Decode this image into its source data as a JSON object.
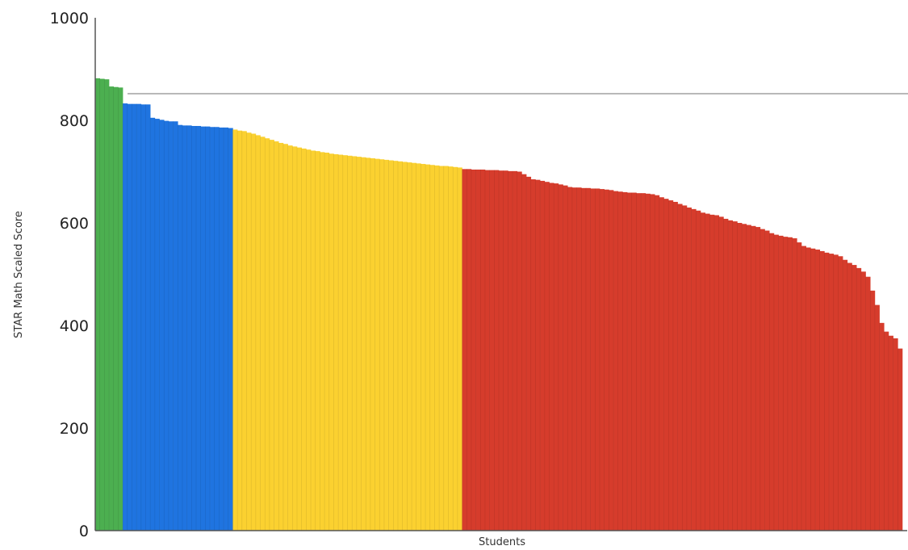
{
  "chart_data": {
    "type": "bar",
    "xlabel": "Students",
    "ylabel": "STAR Math Scaled Score",
    "ylim": [
      0,
      1000
    ],
    "yticks": [
      0,
      200,
      400,
      600,
      800,
      1000
    ],
    "reference_line": 852,
    "grid": false,
    "legend": "none",
    "groups": [
      {
        "color": "#4caf50",
        "values": [
          882,
          881,
          880,
          866,
          865,
          864
        ]
      },
      {
        "color": "#1f74e0",
        "values": [
          833,
          832,
          832,
          832,
          831,
          831,
          805,
          803,
          801,
          799,
          798,
          798,
          791,
          790,
          790,
          789,
          789,
          788,
          788,
          787,
          787,
          786,
          786,
          785
        ]
      },
      {
        "color": "#fbd130",
        "values": [
          782,
          780,
          779,
          776,
          774,
          771,
          768,
          765,
          762,
          759,
          756,
          754,
          751,
          749,
          747,
          745,
          743,
          741,
          740,
          738,
          737,
          735,
          734,
          733,
          732,
          731,
          730,
          729,
          728,
          727,
          726,
          725,
          724,
          723,
          722,
          721,
          720,
          719,
          718,
          717,
          716,
          715,
          714,
          713,
          712,
          711,
          711,
          710,
          709,
          708
        ]
      },
      {
        "color": "#d63c2c",
        "values": [
          705,
          705,
          704,
          704,
          704,
          703,
          703,
          703,
          702,
          702,
          701,
          701,
          700,
          695,
          690,
          685,
          684,
          682,
          680,
          678,
          677,
          675,
          673,
          670,
          669,
          669,
          668,
          668,
          667,
          667,
          666,
          665,
          664,
          662,
          661,
          660,
          659,
          659,
          658,
          658,
          657,
          656,
          654,
          650,
          647,
          644,
          641,
          637,
          634,
          630,
          627,
          624,
          620,
          618,
          616,
          615,
          612,
          608,
          605,
          603,
          600,
          598,
          596,
          594,
          592,
          588,
          585,
          580,
          577,
          575,
          573,
          572,
          570,
          562,
          555,
          552,
          550,
          548,
          545,
          542,
          540,
          538,
          535,
          528,
          522,
          518,
          512,
          505,
          495,
          468,
          440,
          405,
          388,
          380,
          375,
          355
        ]
      }
    ]
  }
}
